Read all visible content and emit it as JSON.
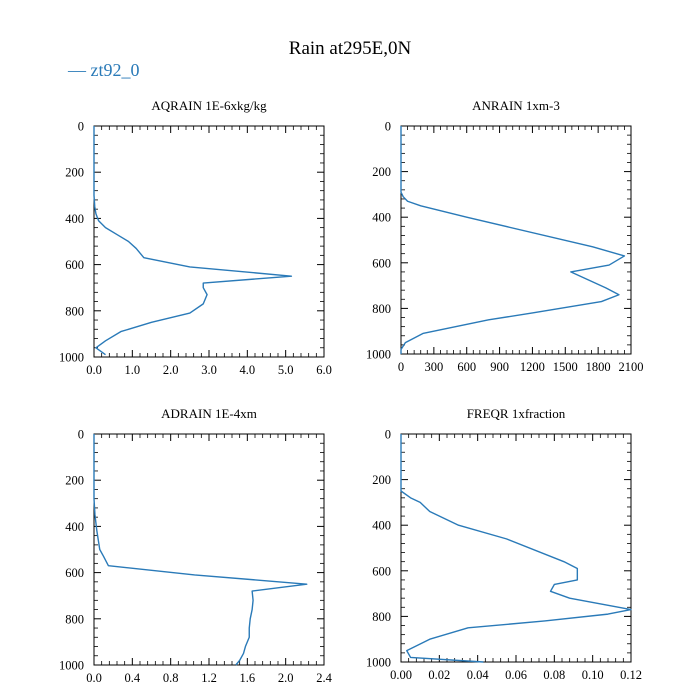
{
  "figure": {
    "title": "Rain at295E,0N",
    "legend_label": "— zt92_0",
    "line_color": "#2a7ab8"
  },
  "chart_data": [
    {
      "type": "line",
      "title": "AQRAIN  1E-6xkg/kg",
      "xlim": [
        0,
        6.0
      ],
      "ylim": [
        1000,
        0
      ],
      "xticks": [
        0.0,
        1.0,
        2.0,
        3.0,
        4.0,
        5.0,
        6.0
      ],
      "xtick_labels": [
        "0.0",
        "1.0",
        "2.0",
        "3.0",
        "4.0",
        "5.0",
        "6.0"
      ],
      "yticks": [
        0,
        200,
        400,
        600,
        800,
        1000
      ],
      "ytick_labels": [
        "0",
        "200",
        "400",
        "600",
        "800",
        "1000"
      ],
      "series": [
        {
          "name": "zt92_0",
          "x": [
            0.0,
            0.0,
            0.02,
            0.05,
            0.12,
            0.3,
            0.6,
            0.9,
            1.1,
            1.3,
            2.5,
            5.15,
            2.85,
            2.85,
            2.95,
            2.85,
            2.5,
            1.5,
            0.7,
            0.3,
            0.05,
            0.3
          ],
          "y": [
            0,
            300,
            350,
            380,
            410,
            440,
            470,
            500,
            530,
            570,
            610,
            650,
            680,
            700,
            730,
            770,
            810,
            850,
            890,
            930,
            960,
            990
          ]
        }
      ]
    },
    {
      "type": "line",
      "title": "ANRAIN  1xm-3",
      "xlim": [
        0,
        2100
      ],
      "ylim": [
        1000,
        0
      ],
      "xticks": [
        0,
        300,
        600,
        900,
        1200,
        1500,
        1800,
        2100
      ],
      "xtick_labels": [
        "0",
        "300",
        "600",
        "900",
        "1200",
        "1500",
        "1800",
        "2100"
      ],
      "yticks": [
        0,
        200,
        400,
        600,
        800,
        1000
      ],
      "ytick_labels": [
        "0",
        "200",
        "400",
        "600",
        "800",
        "1000"
      ],
      "series": [
        {
          "name": "zt92_0",
          "x": [
            0,
            0,
            20,
            60,
            180,
            600,
            1750,
            2040,
            1900,
            1550,
            1870,
            1990,
            1830,
            1200,
            800,
            200,
            40,
            0,
            0
          ],
          "y": [
            0,
            290,
            310,
            330,
            350,
            400,
            530,
            570,
            610,
            640,
            710,
            740,
            770,
            820,
            850,
            910,
            950,
            980,
            1000
          ]
        }
      ]
    },
    {
      "type": "line",
      "title": "ADRAIN  1E-4xm",
      "xlim": [
        0,
        2.4
      ],
      "ylim": [
        1000,
        0
      ],
      "xticks": [
        0.0,
        0.4,
        0.8,
        1.2,
        1.6,
        2.0,
        2.4
      ],
      "xtick_labels": [
        "0.0",
        "0.4",
        "0.8",
        "1.2",
        "1.6",
        "2.0",
        "2.4"
      ],
      "yticks": [
        0,
        200,
        400,
        600,
        800,
        1000
      ],
      "ytick_labels": [
        "0",
        "200",
        "400",
        "600",
        "800",
        "1000"
      ],
      "series": [
        {
          "name": "zt92_0",
          "x": [
            0.0,
            0.0,
            0.01,
            0.03,
            0.06,
            0.1,
            0.15,
            1.05,
            2.22,
            1.65,
            1.66,
            1.65,
            1.63,
            1.62,
            1.62,
            1.58,
            1.56,
            1.52,
            1.48
          ],
          "y": [
            0,
            280,
            350,
            420,
            500,
            530,
            570,
            610,
            650,
            680,
            720,
            760,
            800,
            840,
            880,
            920,
            950,
            980,
            1000
          ]
        }
      ]
    },
    {
      "type": "line",
      "title": "FREQR  1xfraction",
      "xlim": [
        0,
        0.12
      ],
      "ylim": [
        1000,
        0
      ],
      "xticks": [
        0.0,
        0.02,
        0.04,
        0.06,
        0.08,
        0.1,
        0.12
      ],
      "xtick_labels": [
        "0.00",
        "0.02",
        "0.04",
        "0.06",
        "0.08",
        "0.10",
        "0.12"
      ],
      "yticks": [
        0,
        200,
        400,
        600,
        800,
        1000
      ],
      "ytick_labels": [
        "0",
        "200",
        "400",
        "600",
        "800",
        "1000"
      ],
      "series": [
        {
          "name": "zt92_0",
          "x": [
            0.0,
            0.0,
            0.005,
            0.01,
            0.015,
            0.03,
            0.055,
            0.085,
            0.092,
            0.092,
            0.08,
            0.078,
            0.088,
            0.12,
            0.108,
            0.075,
            0.035,
            0.015,
            0.003,
            0.005,
            0.043
          ],
          "y": [
            0,
            250,
            280,
            300,
            340,
            400,
            460,
            560,
            590,
            640,
            660,
            690,
            720,
            770,
            790,
            820,
            850,
            900,
            950,
            980,
            1000
          ]
        }
      ]
    }
  ]
}
